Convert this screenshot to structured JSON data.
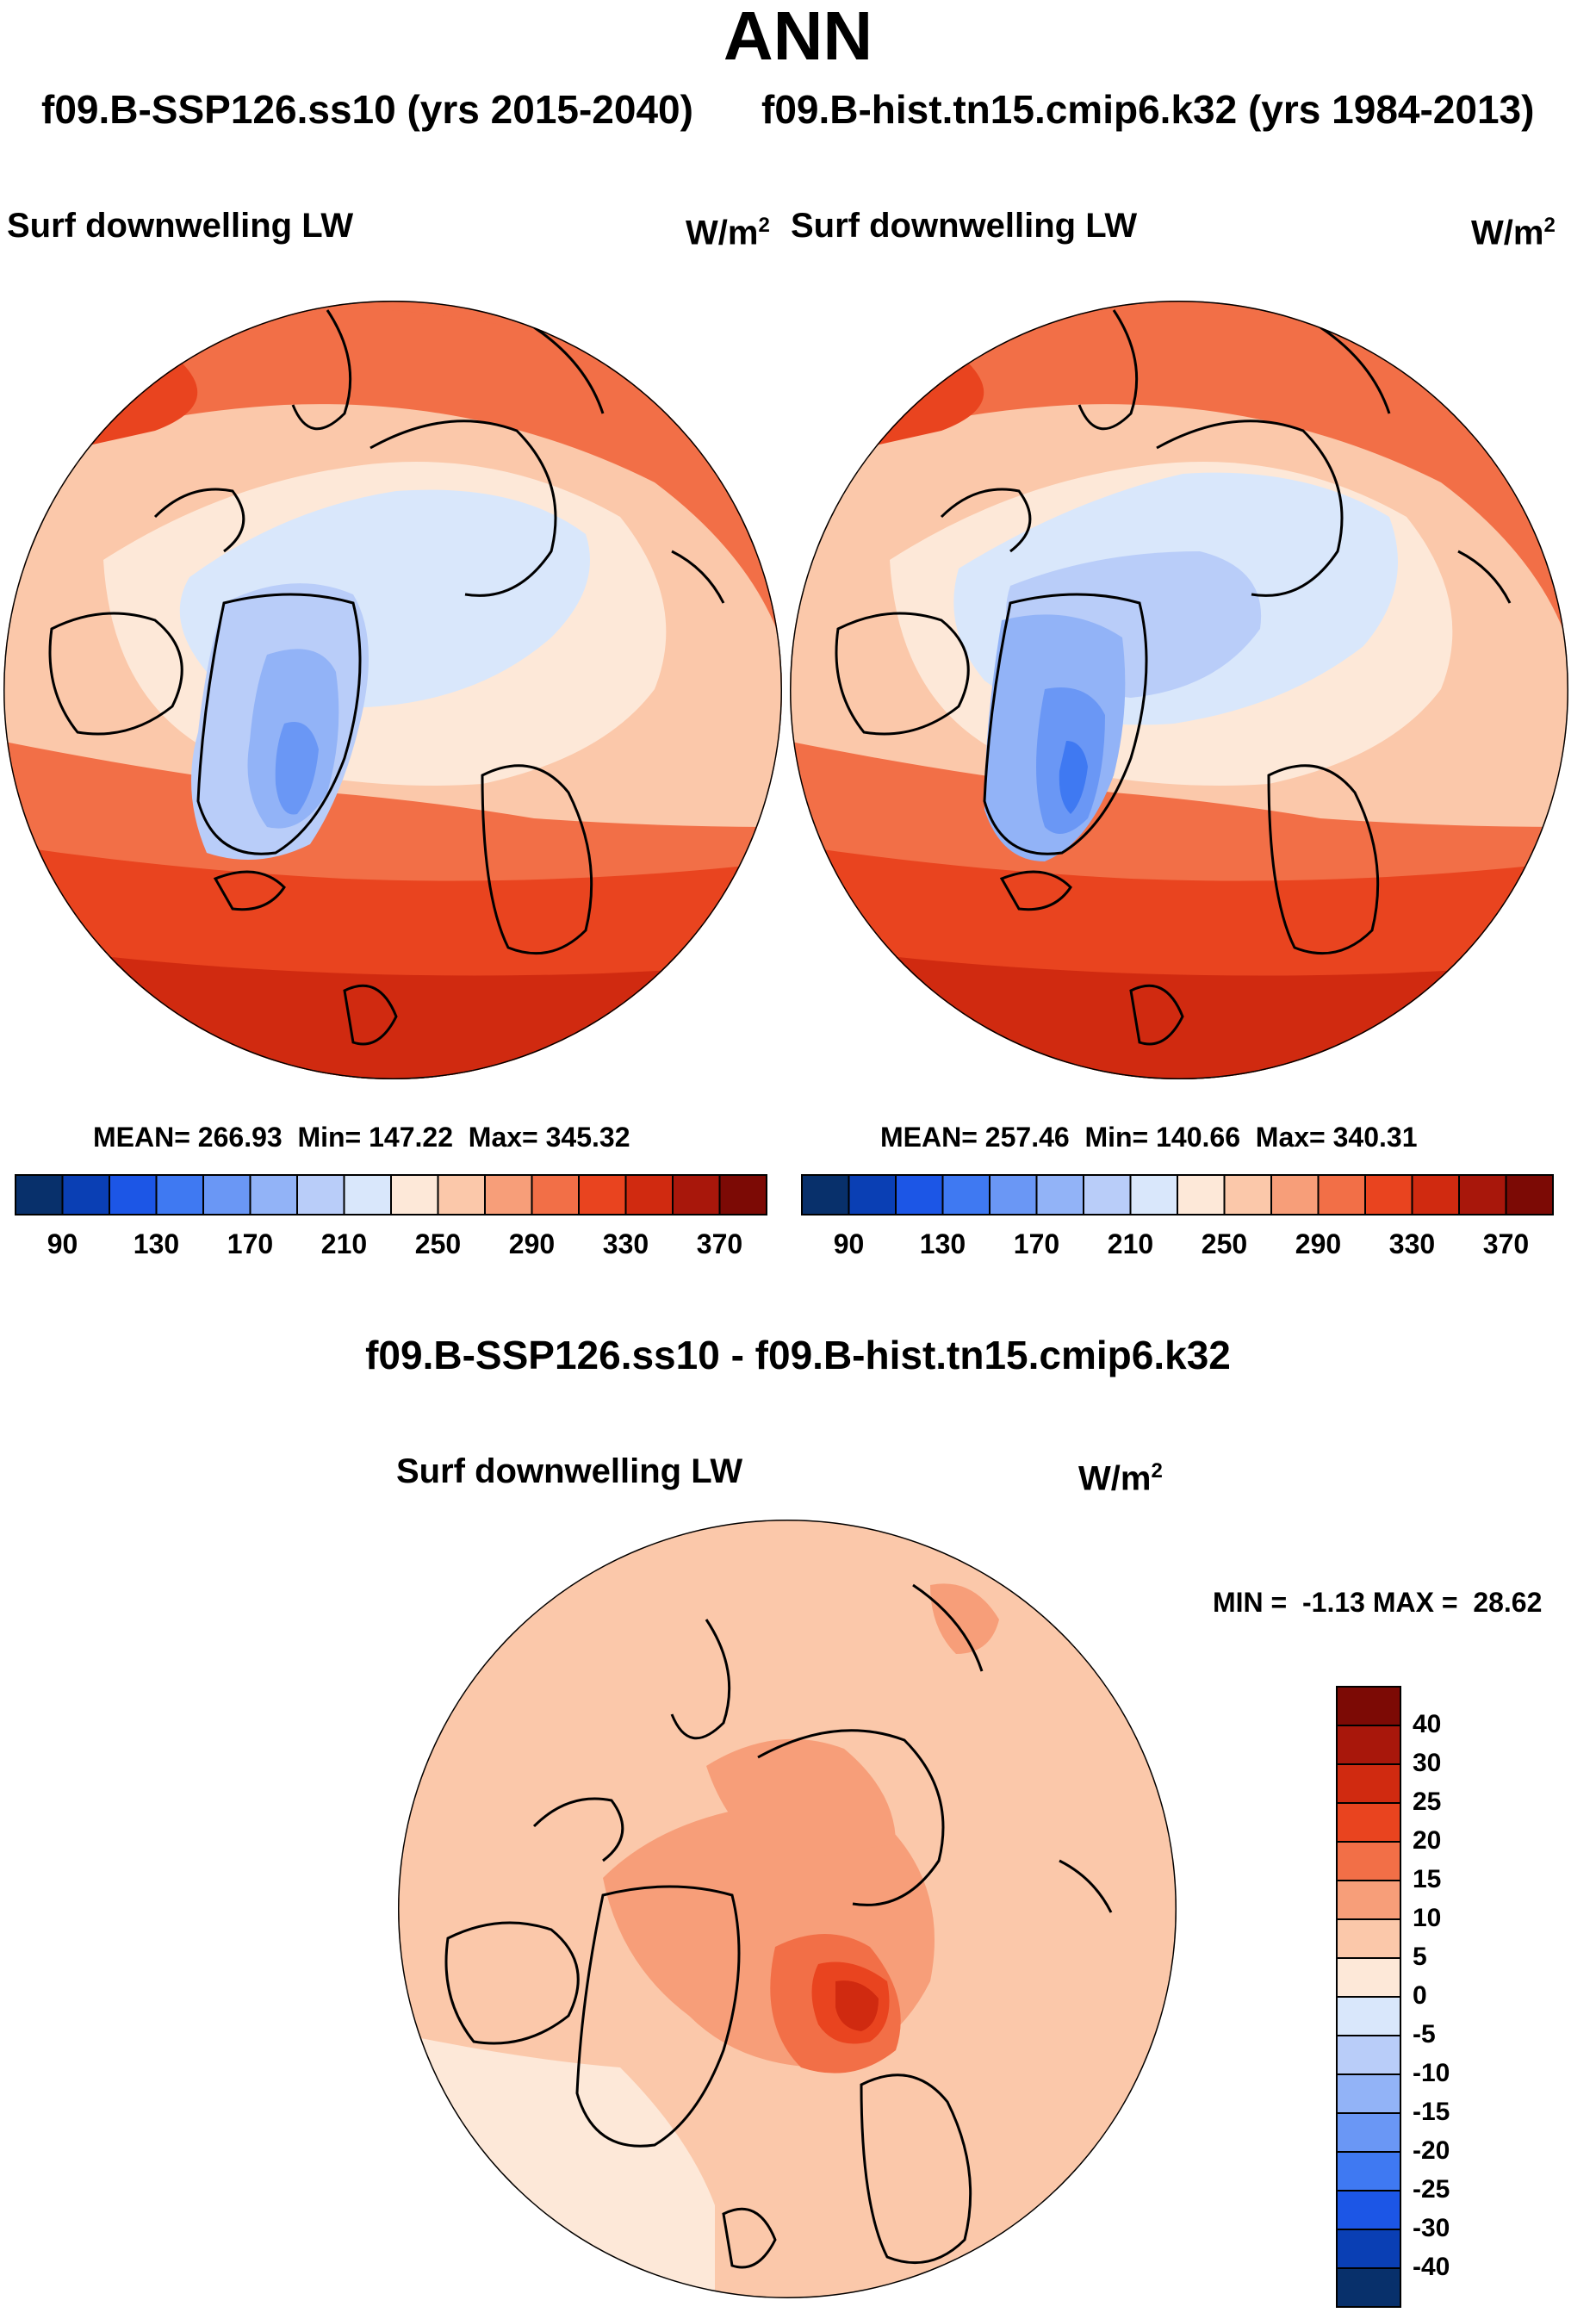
{
  "page": {
    "title": "ANN",
    "subtitle_left": "f09.B-SSP126.ss10 (yrs 2015-2040)",
    "subtitle_right": "f09.B-hist.tn15.cmip6.k32 (yrs 1984-2013)"
  },
  "colors": {
    "scale": [
      "#08306b",
      "#0a3fb4",
      "#1c56e6",
      "#3f79f2",
      "#6a97f5",
      "#92b3f7",
      "#b9cdf9",
      "#d9e7fb",
      "#fde8d8",
      "#fbc8aa",
      "#f79e79",
      "#f26f47",
      "#e9441f",
      "#d02a10",
      "#a8170b",
      "#7c0a05"
    ],
    "ocean_warm": "#f0845a",
    "land_outline": "#000000"
  },
  "panels": [
    {
      "id": "ssp126",
      "var_label": "Surf downwelling LW",
      "units_base": "W/m",
      "units_exp": "2",
      "stats": {
        "mean_label": "MEAN=",
        "mean": "266.93",
        "min_label": "Min=",
        "min": "147.22",
        "max_label": "Max=",
        "max": "345.32"
      },
      "colorbar_ticks": [
        "90",
        "130",
        "170",
        "210",
        "250",
        "290",
        "330",
        "370"
      ]
    },
    {
      "id": "hist",
      "var_label": "Surf downwelling LW",
      "units_base": "W/m",
      "units_exp": "2",
      "stats": {
        "mean_label": "MEAN=",
        "mean": "257.46",
        "min_label": "Min=",
        "min": "140.66",
        "max_label": "Max=",
        "max": "340.31"
      },
      "colorbar_ticks": [
        "90",
        "130",
        "170",
        "210",
        "250",
        "290",
        "330",
        "370"
      ]
    }
  ],
  "diff": {
    "title": "f09.B-SSP126.ss10 - f09.B-hist.tn15.cmip6.k32",
    "var_label": "Surf downwelling LW",
    "units_base": "W/m",
    "units_exp": "2",
    "minmax_text": "MIN =  -1.13 MAX =  28.62",
    "colorbar_ticks": [
      "40",
      "30",
      "25",
      "20",
      "15",
      "10",
      "5",
      "0",
      "-5",
      "-10",
      "-15",
      "-20",
      "-25",
      "-30",
      "-40"
    ],
    "colorbar_colors": [
      "#7c0a05",
      "#a8170b",
      "#d02a10",
      "#e9441f",
      "#f26f47",
      "#f79e79",
      "#fbc8aa",
      "#fde8d8",
      "#d9e7fb",
      "#b9cdf9",
      "#92b3f7",
      "#6a97f5",
      "#3f79f2",
      "#1c56e6",
      "#0a3fb4",
      "#08306b"
    ]
  }
}
